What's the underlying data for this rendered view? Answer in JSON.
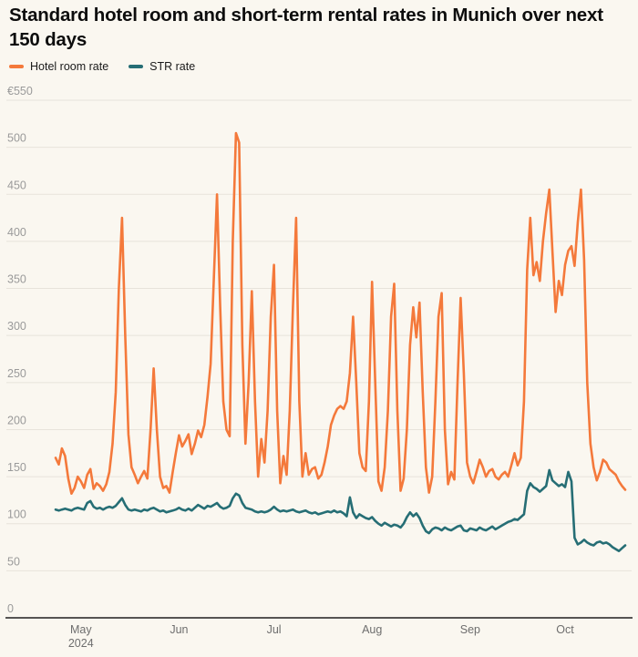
{
  "header": {
    "title": "Standard hotel room and short-term rental rates in Munich over next 150 days"
  },
  "legend": {
    "items": [
      {
        "label": "Hotel room rate",
        "color": "#F4793B"
      },
      {
        "label": "STR rate",
        "color": "#266E75"
      }
    ]
  },
  "colors": {
    "background": "#FAF7F0",
    "gridline": "#E7E3DB",
    "axis_line": "#1F1F1F",
    "y_tick_label": "#9A9A9A",
    "x_tick_label": "#6E6E6E"
  },
  "chart_data": {
    "type": "line",
    "title": "Standard hotel room and short-term rental rates in Munich over next 150 days",
    "currency_prefix": "€",
    "x_start_date": "2024-04-23",
    "x_interval": "daily",
    "n_points": 181,
    "ylim": [
      0,
      550
    ],
    "y_ticks": [
      0,
      50,
      100,
      150,
      200,
      250,
      300,
      350,
      400,
      450,
      500,
      550
    ],
    "y_top_tick_label": "€550",
    "x_ticks": [
      {
        "label": "May",
        "sub": "2024",
        "day": 8
      },
      {
        "label": "Jun",
        "day": 39
      },
      {
        "label": "Jul",
        "day": 69
      },
      {
        "label": "Aug",
        "day": 100
      },
      {
        "label": "Sep",
        "day": 131
      },
      {
        "label": "Oct",
        "day": 161
      }
    ],
    "grid": "horizontal",
    "legend_position": "top-left",
    "series": [
      {
        "name": "Hotel room rate",
        "color": "#F4793B",
        "values": [
          170,
          163,
          180,
          172,
          148,
          132,
          138,
          150,
          145,
          138,
          152,
          158,
          137,
          143,
          140,
          135,
          142,
          155,
          185,
          240,
          350,
          425,
          300,
          195,
          160,
          152,
          143,
          150,
          156,
          148,
          200,
          265,
          200,
          150,
          138,
          140,
          133,
          155,
          175,
          194,
          182,
          188,
          195,
          174,
          185,
          199,
          192,
          205,
          235,
          270,
          360,
          450,
          330,
          230,
          200,
          193,
          400,
          515,
          505,
          290,
          185,
          250,
          347,
          230,
          150,
          190,
          165,
          220,
          320,
          375,
          220,
          143,
          172,
          152,
          220,
          330,
          425,
          230,
          150,
          175,
          152,
          158,
          160,
          148,
          152,
          165,
          182,
          205,
          215,
          222,
          225,
          222,
          230,
          260,
          320,
          250,
          175,
          160,
          156,
          230,
          357,
          250,
          145,
          135,
          160,
          220,
          320,
          355,
          220,
          135,
          148,
          200,
          290,
          330,
          298,
          335,
          240,
          160,
          133,
          150,
          230,
          320,
          345,
          200,
          142,
          155,
          147,
          250,
          340,
          260,
          165,
          150,
          143,
          155,
          168,
          160,
          150,
          156,
          158,
          150,
          147,
          152,
          155,
          150,
          162,
          175,
          162,
          170,
          230,
          370,
          425,
          364,
          378,
          358,
          400,
          430,
          455,
          390,
          325,
          358,
          343,
          375,
          390,
          395,
          374,
          420,
          455,
          380,
          250,
          185,
          160,
          146,
          155,
          168,
          165,
          158,
          155,
          152,
          145,
          140,
          136
        ]
      },
      {
        "name": "STR rate",
        "color": "#266E75",
        "values": [
          115,
          114,
          115,
          116,
          115,
          114,
          116,
          117,
          116,
          115,
          122,
          124,
          118,
          116,
          117,
          115,
          117,
          118,
          117,
          119,
          123,
          127,
          120,
          115,
          114,
          115,
          114,
          113,
          115,
          114,
          116,
          117,
          115,
          113,
          114,
          112,
          113,
          114,
          115,
          117,
          115,
          114,
          116,
          114,
          117,
          120,
          118,
          116,
          119,
          118,
          120,
          122,
          118,
          116,
          117,
          119,
          127,
          132,
          130,
          122,
          117,
          116,
          115,
          113,
          112,
          113,
          112,
          113,
          115,
          118,
          115,
          113,
          114,
          113,
          114,
          115,
          113,
          112,
          113,
          114,
          112,
          111,
          112,
          110,
          111,
          112,
          113,
          112,
          114,
          112,
          113,
          111,
          108,
          128,
          112,
          106,
          110,
          108,
          106,
          105,
          107,
          103,
          100,
          98,
          101,
          99,
          97,
          99,
          98,
          96,
          100,
          107,
          112,
          108,
          111,
          106,
          98,
          92,
          90,
          94,
          96,
          95,
          93,
          96,
          94,
          93,
          95,
          97,
          98,
          93,
          92,
          95,
          94,
          93,
          96,
          94,
          93,
          95,
          97,
          94,
          96,
          98,
          100,
          102,
          103,
          105,
          104,
          107,
          110,
          135,
          143,
          139,
          137,
          134,
          137,
          140,
          157,
          146,
          143,
          140,
          142,
          139,
          155,
          145,
          85,
          78,
          80,
          83,
          80,
          78,
          77,
          80,
          81,
          79,
          80,
          78,
          75,
          73,
          71,
          74,
          77
        ]
      }
    ]
  }
}
